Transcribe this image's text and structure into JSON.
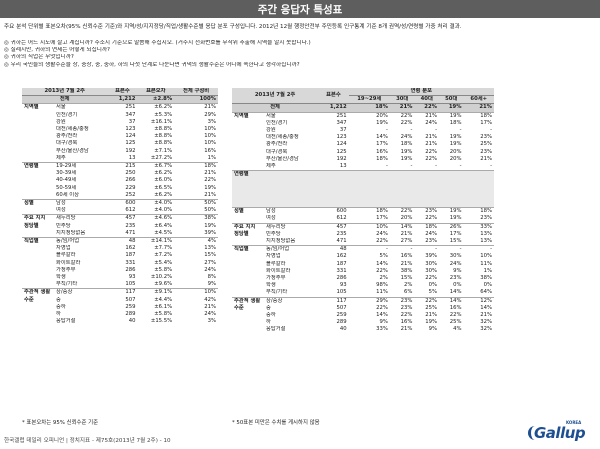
{
  "title": "주간 응답자 특성표",
  "note": "주요 분석 단위별 표본오차(95% 신뢰수준 기준)와 지역/성/지지정당/직업/생활수준별 응답 분포 구성입니다. 2012년 12월 행정안전부 주민등록 인구통계 기준 8개 권역/성/연령별 가중 처리 결과.",
  "questions": [
    "귀하는 어느 시도에 살고 계십니까? 주소지 기준으로 말씀해 주십시오. (거주지 전화번호를 무작위 추출해 지역을 알지 못합니다.)",
    "실례지만, 귀하의 연세는 어떻게 되십니까?",
    "귀하의 직업은 무엇입니까?",
    "우리 국민들의 생활수준을 상, 중상, 중, 중하, 하의 다섯 단계로 나눈다면 귀댁의 생활수준은 어디에 속한다고 생각하십니까?"
  ],
  "left_table": {
    "headers": [
      "2013년 7월 2주",
      "표본수",
      "표본오차",
      "전체 구성비"
    ],
    "total": {
      "label": "전체",
      "n": "1,212",
      "err": "±2.8%",
      "pct": "100%"
    },
    "groups": [
      {
        "name": "지역별",
        "rows": [
          [
            "서울",
            "251",
            "±6.2%",
            "21%"
          ],
          [
            "인천/경기",
            "347",
            "±5.3%",
            "29%"
          ],
          [
            "강원",
            "37",
            "±16.1%",
            "3%"
          ],
          [
            "대전/세종/충청",
            "123",
            "±8.8%",
            "10%"
          ],
          [
            "광주/전라",
            "124",
            "±8.8%",
            "10%"
          ],
          [
            "대구/경북",
            "125",
            "±8.8%",
            "10%"
          ],
          [
            "부산/울산/경남",
            "192",
            "±7.1%",
            "16%"
          ],
          [
            "제주",
            "13",
            "±27.2%",
            "1%"
          ]
        ]
      },
      {
        "name": "연령별",
        "rows": [
          [
            "19-29세",
            "215",
            "±6.7%",
            "18%"
          ],
          [
            "30-39세",
            "250",
            "±6.2%",
            "21%"
          ],
          [
            "40-49세",
            "266",
            "±6.0%",
            "22%"
          ],
          [
            "50-59세",
            "229",
            "±6.5%",
            "19%"
          ],
          [
            "60세 이상",
            "252",
            "±6.2%",
            "21%"
          ]
        ]
      },
      {
        "name": "성별",
        "rows": [
          [
            "남성",
            "600",
            "±4.0%",
            "50%"
          ],
          [
            "여성",
            "612",
            "±4.0%",
            "50%"
          ]
        ]
      },
      {
        "name": "주요 지지 정당별",
        "rows": [
          [
            "새누리당",
            "457",
            "±4.6%",
            "38%"
          ],
          [
            "민주당",
            "235",
            "±6.4%",
            "19%"
          ],
          [
            "지지정당없음",
            "471",
            "±4.5%",
            "39%"
          ]
        ]
      },
      {
        "name": "직업별",
        "rows": [
          [
            "농/임/어업",
            "48",
            "±14.1%",
            "4%"
          ],
          [
            "자영업",
            "162",
            "±7.7%",
            "13%"
          ],
          [
            "블루칼라",
            "187",
            "±7.2%",
            "15%"
          ],
          [
            "화이트칼라",
            "331",
            "±5.4%",
            "27%"
          ],
          [
            "가정주부",
            "286",
            "±5.8%",
            "24%"
          ],
          [
            "학생",
            "93",
            "±10.2%",
            "8%"
          ],
          [
            "무직/기타",
            "105",
            "±9.6%",
            "9%"
          ]
        ]
      },
      {
        "name": "주관적 생활수준",
        "rows": [
          [
            "상/중상",
            "117",
            "±9.1%",
            "10%"
          ],
          [
            "중",
            "507",
            "±4.4%",
            "42%"
          ],
          [
            "중하",
            "259",
            "±6.1%",
            "21%"
          ],
          [
            "하",
            "289",
            "±5.8%",
            "24%"
          ],
          [
            "응답거절",
            "40",
            "±15.5%",
            "3%"
          ]
        ]
      }
    ]
  },
  "right_table": {
    "headers": [
      "2013년 7월 2주",
      "표본수",
      "연령 분포",
      "19~29세",
      "30대",
      "40대",
      "50대",
      "60세+"
    ],
    "total": {
      "label": "전체",
      "n": "1,212",
      "vals": [
        "18%",
        "21%",
        "22%",
        "19%",
        "21%"
      ]
    },
    "groups": [
      {
        "name": "지역별",
        "rows": [
          [
            "서울",
            "251",
            "20%",
            "22%",
            "21%",
            "19%",
            "18%"
          ],
          [
            "인천/경기",
            "347",
            "19%",
            "22%",
            "24%",
            "18%",
            "17%"
          ],
          [
            "강원",
            "37",
            "-",
            "-",
            "-",
            "-",
            "-"
          ],
          [
            "대전/세종/충청",
            "123",
            "14%",
            "24%",
            "21%",
            "19%",
            "23%"
          ],
          [
            "광주/전라",
            "124",
            "17%",
            "18%",
            "21%",
            "19%",
            "25%"
          ],
          [
            "대구/경북",
            "125",
            "16%",
            "19%",
            "22%",
            "20%",
            "23%"
          ],
          [
            "부산/울산/경남",
            "192",
            "18%",
            "19%",
            "22%",
            "20%",
            "21%"
          ],
          [
            "제주",
            "13",
            "-",
            "-",
            "-",
            "-",
            "-"
          ]
        ]
      },
      {
        "name": "연령별",
        "rows": [
          [
            "",
            "",
            "",
            "",
            "",
            "",
            ""
          ],
          [
            "",
            "",
            "",
            "",
            "",
            "",
            ""
          ],
          [
            "",
            "",
            "",
            "",
            "",
            "",
            ""
          ],
          [
            "",
            "",
            "",
            "",
            "",
            "",
            ""
          ],
          [
            "",
            "",
            "",
            "",
            "",
            "",
            ""
          ]
        ]
      },
      {
        "name": "성별",
        "rows": [
          [
            "남성",
            "600",
            "18%",
            "22%",
            "23%",
            "19%",
            "18%"
          ],
          [
            "여성",
            "612",
            "17%",
            "20%",
            "22%",
            "19%",
            "23%"
          ]
        ]
      },
      {
        "name": "주요 지지 정당별",
        "rows": [
          [
            "새누리당",
            "457",
            "10%",
            "14%",
            "18%",
            "26%",
            "33%"
          ],
          [
            "민주당",
            "235",
            "24%",
            "21%",
            "24%",
            "17%",
            "13%"
          ],
          [
            "지지정당없음",
            "471",
            "22%",
            "27%",
            "23%",
            "15%",
            "13%"
          ]
        ]
      },
      {
        "name": "직업별",
        "rows": [
          [
            "농/임/어업",
            "48",
            "-",
            "-",
            "-",
            "-",
            "-"
          ],
          [
            "자영업",
            "162",
            "5%",
            "16%",
            "39%",
            "30%",
            "10%"
          ],
          [
            "블루칼라",
            "187",
            "14%",
            "21%",
            "30%",
            "24%",
            "11%"
          ],
          [
            "화이트칼라",
            "331",
            "22%",
            "38%",
            "30%",
            "9%",
            "1%"
          ],
          [
            "가정주부",
            "286",
            "2%",
            "15%",
            "22%",
            "23%",
            "38%"
          ],
          [
            "학생",
            "93",
            "98%",
            "2%",
            "0%",
            "0%",
            "0%"
          ],
          [
            "무직/기타",
            "105",
            "11%",
            "6%",
            "5%",
            "14%",
            "64%"
          ]
        ]
      },
      {
        "name": "주관적 생활수준",
        "rows": [
          [
            "상/중상",
            "117",
            "29%",
            "23%",
            "22%",
            "14%",
            "12%"
          ],
          [
            "중",
            "507",
            "22%",
            "23%",
            "25%",
            "16%",
            "14%"
          ],
          [
            "중하",
            "259",
            "14%",
            "22%",
            "21%",
            "22%",
            "21%"
          ],
          [
            "하",
            "289",
            "9%",
            "16%",
            "19%",
            "25%",
            "32%"
          ],
          [
            "응답거절",
            "40",
            "33%",
            "21%",
            "9%",
            "4%",
            "32%"
          ]
        ]
      }
    ]
  },
  "footnote_left": "* 표본오차는 95% 신뢰수준 기준",
  "footnote_right": "* 50표본 미만은 수치를 게시하지 않음",
  "footer": "한국갤럽 데일리 오피니언 | 정치지표 - 제75호(2013년 7월 2주) - 10",
  "logo": {
    "text": "Gallup",
    "sub": "KOREA"
  }
}
